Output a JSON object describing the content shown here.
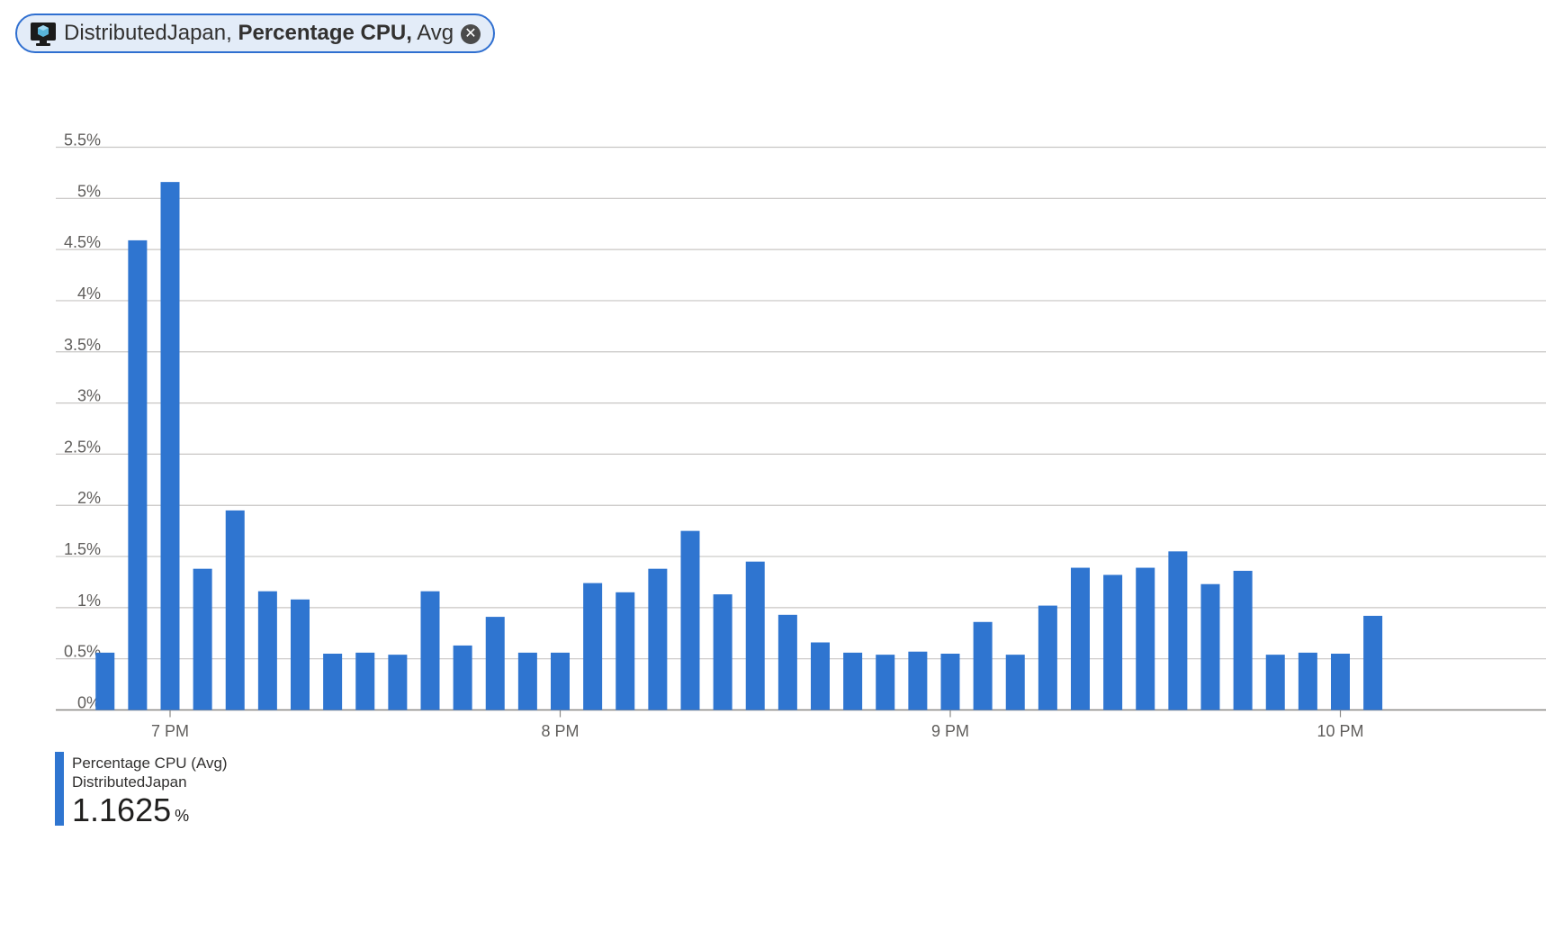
{
  "filter_pill": {
    "resource": "DistributedJapan,",
    "metric": "Percentage CPU,",
    "aggregation": "Avg",
    "icon": "vm-icon",
    "close_icon": "close-icon"
  },
  "legend": {
    "metric_label": "Percentage CPU (Avg)",
    "resource_label": "DistributedJapan",
    "value": "1.1625",
    "unit": "%",
    "color": "#2f75d0"
  },
  "chart_data": {
    "type": "bar",
    "title": "",
    "xlabel": "",
    "ylabel": "",
    "ylim": [
      0,
      5.5
    ],
    "y_ticks": [
      "0%",
      "0.5%",
      "1%",
      "1.5%",
      "2%",
      "2.5%",
      "3%",
      "3.5%",
      "4%",
      "4.5%",
      "5%",
      "5.5%"
    ],
    "x_tick_labels": [
      "7 PM",
      "8 PM",
      "9 PM",
      "10 PM"
    ],
    "bar_interval_minutes": 5,
    "x_range": [
      "6:47 PM",
      "10:08 PM"
    ],
    "grid": true,
    "color": "#2f75d0",
    "series": [
      {
        "name": "Percentage CPU (Avg)",
        "categories": [
          "6:50 PM",
          "6:55 PM",
          "7:00 PM",
          "7:05 PM",
          "7:10 PM",
          "7:15 PM",
          "7:20 PM",
          "7:25 PM",
          "7:30 PM",
          "7:35 PM",
          "7:40 PM",
          "7:45 PM",
          "7:50 PM",
          "7:55 PM",
          "8:00 PM",
          "8:05 PM",
          "8:10 PM",
          "8:15 PM",
          "8:20 PM",
          "8:25 PM",
          "8:30 PM",
          "8:35 PM",
          "8:40 PM",
          "8:45 PM",
          "8:50 PM",
          "8:55 PM",
          "9:00 PM",
          "9:05 PM",
          "9:10 PM",
          "9:15 PM",
          "9:20 PM",
          "9:25 PM",
          "9:30 PM",
          "9:35 PM",
          "9:40 PM",
          "9:45 PM",
          "9:50 PM",
          "9:55 PM",
          "10:00 PM",
          "10:05 PM"
        ],
        "values": [
          0.56,
          4.59,
          5.16,
          1.38,
          1.95,
          1.16,
          1.08,
          0.55,
          0.56,
          0.54,
          1.16,
          0.63,
          0.91,
          0.56,
          0.56,
          1.24,
          1.15,
          1.38,
          1.75,
          1.13,
          1.45,
          0.93,
          0.66,
          0.56,
          0.54,
          0.57,
          0.55,
          0.86,
          0.54,
          1.02,
          1.39,
          1.32,
          1.39,
          1.55,
          1.23,
          1.36,
          0.54,
          0.56,
          0.55,
          0.92
        ]
      }
    ]
  }
}
